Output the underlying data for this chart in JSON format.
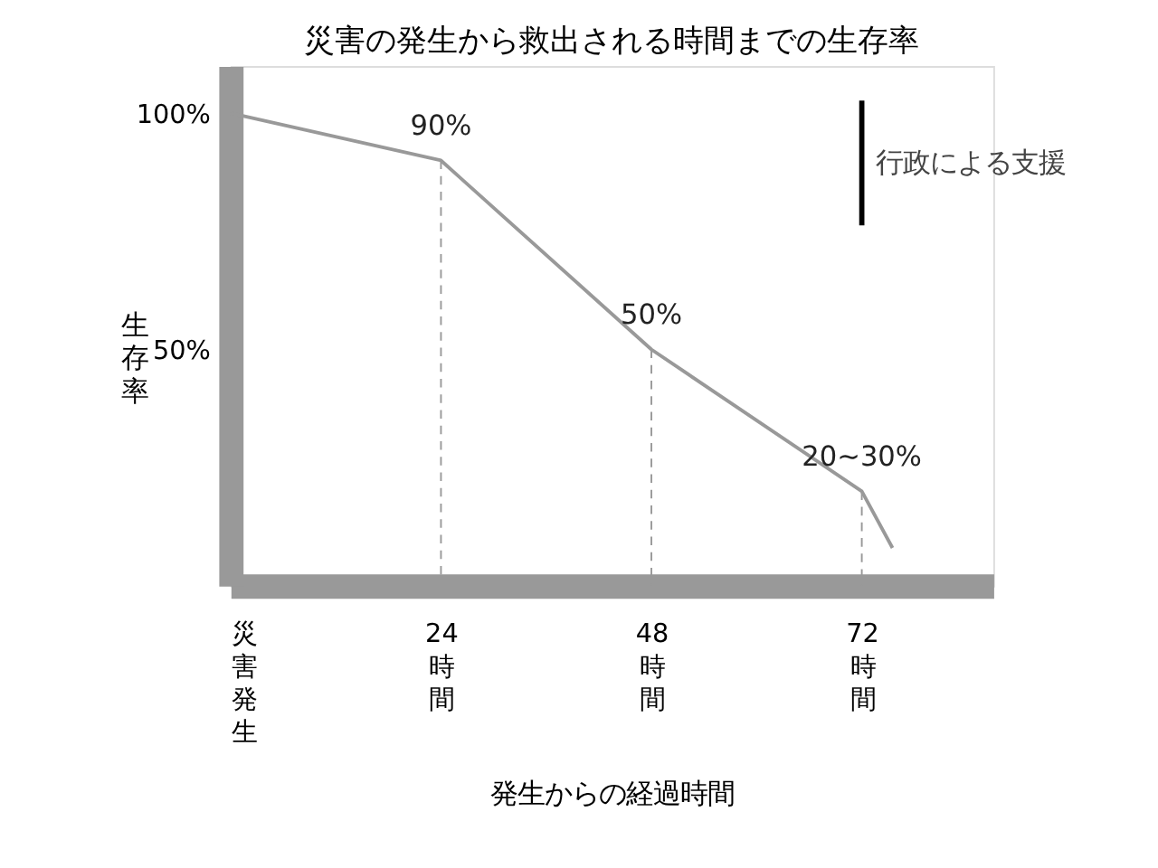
{
  "chart_data": {
    "type": "line",
    "title": "災害の発生から救出される時間までの生存率",
    "xlabel": "発生からの経過時間",
    "ylabel": "生存率",
    "x": [
      0,
      24,
      48,
      72,
      75.5
    ],
    "series": [
      {
        "color": "#999999",
        "values": [
          100,
          90,
          50,
          20,
          8
        ],
        "value_labels": [
          null,
          "90%",
          "50%",
          "20~30%",
          null
        ]
      }
    ],
    "xlim": [
      0,
      87
    ],
    "xticks": [
      {
        "value": 0,
        "label": "災害発生"
      },
      {
        "value": 24,
        "label": "24時間"
      },
      {
        "value": 48,
        "label": "48時間"
      },
      {
        "value": 72,
        "label": "72時間"
      }
    ],
    "ylim": [
      0,
      110
    ],
    "yticks": [
      {
        "value": 50,
        "label": "50%"
      },
      {
        "value": 100,
        "label": "100%"
      }
    ],
    "ref_lines": [
      {
        "axis": "x",
        "value": 24,
        "line_style": "dashed",
        "color": "#999999"
      },
      {
        "axis": "x",
        "value": 48,
        "line_style": "dashed",
        "color": "#999999"
      },
      {
        "axis": "x",
        "value": 72,
        "line_style": "dashed",
        "color": "#999999"
      },
      {
        "axis": "x",
        "value": 72,
        "label": "行政による支援",
        "color": "#000000"
      }
    ],
    "grid": false,
    "marker": "none",
    "line_style": "solid"
  }
}
